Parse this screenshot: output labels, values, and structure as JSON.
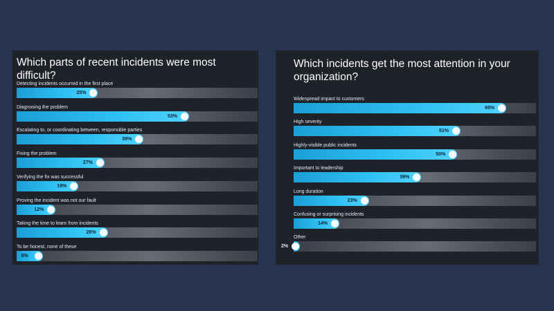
{
  "colors": {
    "background": "#263450",
    "panel": "#1f2229",
    "bar_fill": "#2fc1f3",
    "track": "#666b74"
  },
  "chart_data": [
    {
      "type": "bar",
      "orientation": "horizontal",
      "title": "Which parts of recent incidents were most difficult?",
      "categories": [
        "Detecting incidents occurred in the first place",
        "Diagnosing the problem",
        "Escalating to, or coordinating between, responsible parties",
        "Fixing the problem",
        "Verifying the fix was successful",
        "Proving the incident was not our fault",
        "Taking the time to learn from incidents",
        "To be honest, none of these"
      ],
      "values": [
        25,
        53,
        39,
        27,
        19,
        12,
        28,
        8
      ],
      "value_labels": [
        "25%",
        "53%",
        "39%",
        "27%",
        "19%",
        "12%",
        "28%",
        "8%"
      ],
      "xlim": [
        0,
        100
      ],
      "grid": false,
      "legend": "none"
    },
    {
      "type": "bar",
      "orientation": "horizontal",
      "title": "Which incidents get the most attention in your organization?",
      "categories": [
        "Widespread impact to customers",
        "High severity",
        "Highly-visible public incidents",
        "Important to leadership",
        "Long duration",
        "Confusing or surprising incidents",
        "Other"
      ],
      "values": [
        65,
        51,
        50,
        39,
        23,
        14,
        2
      ],
      "value_labels": [
        "65%",
        "51%",
        "50%",
        "39%",
        "23%",
        "14%",
        "2%"
      ],
      "xlim": [
        0,
        100
      ],
      "grid": false,
      "legend": "none"
    }
  ]
}
